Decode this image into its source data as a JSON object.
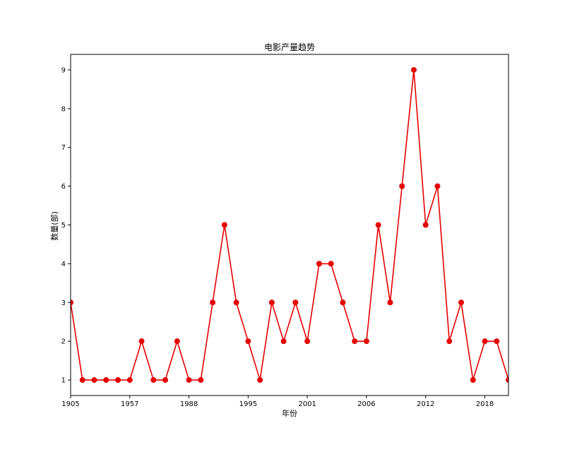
{
  "colors": {
    "series": "#e60000",
    "axis": "#000000",
    "background": "#ffffff"
  },
  "chart_data": {
    "type": "line",
    "title": "电影产量趋势",
    "xlabel": "年份",
    "ylabel": "数量(部)",
    "x_tick_labels": [
      "1905",
      "1957",
      "1988",
      "1995",
      "2001",
      "2006",
      "2012",
      "2018"
    ],
    "x_tick_indices": [
      0,
      5,
      10,
      15,
      20,
      25,
      30,
      35
    ],
    "y_ticks": [
      1,
      2,
      3,
      4,
      5,
      6,
      7,
      8,
      9
    ],
    "ylim": [
      0.6,
      9.4
    ],
    "grid": false,
    "marker": "circle",
    "series": [
      {
        "values": [
          3,
          1,
          1,
          1,
          1,
          1,
          2,
          1,
          1,
          2,
          1,
          1,
          3,
          5,
          3,
          2,
          1,
          3,
          2,
          3,
          2,
          4,
          4,
          3,
          2,
          2,
          5,
          3,
          6,
          9,
          5,
          6,
          2,
          3,
          1,
          2,
          2,
          1
        ]
      }
    ]
  }
}
